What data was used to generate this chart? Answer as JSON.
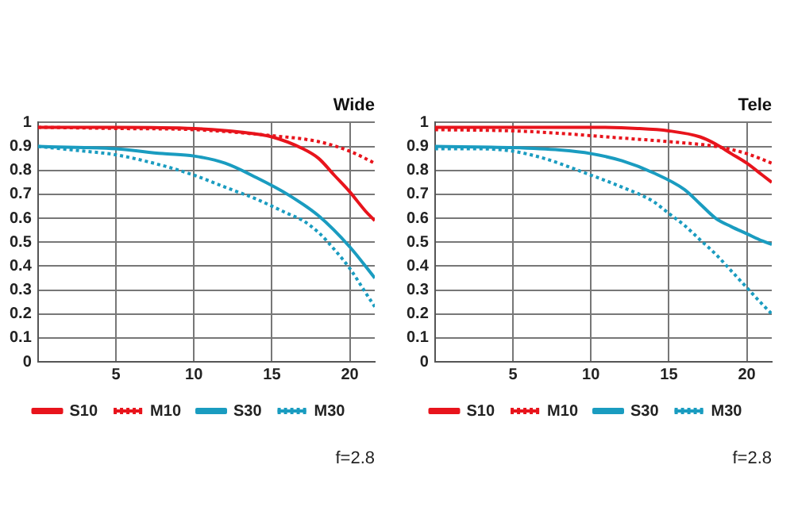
{
  "chart_data": [
    {
      "type": "line",
      "title": "Wide",
      "xlim": [
        0,
        21.6
      ],
      "xticks": [
        5,
        10,
        15,
        20
      ],
      "ylim": [
        0,
        1
      ],
      "yticks": [
        0,
        0.1,
        0.2,
        0.3,
        0.4,
        0.5,
        0.6,
        0.7,
        0.8,
        0.9,
        1
      ],
      "grid": true,
      "legend": "bottom",
      "marker": "none",
      "annotations": [
        "f=2.8"
      ],
      "series": [
        {
          "name": "S10",
          "color": "#e8141c",
          "line_style": "solid",
          "x": [
            0,
            5,
            10,
            13,
            15,
            17,
            18,
            19,
            20,
            21,
            21.6
          ],
          "values": [
            0.98,
            0.98,
            0.975,
            0.96,
            0.94,
            0.89,
            0.85,
            0.78,
            0.71,
            0.63,
            0.59
          ]
        },
        {
          "name": "M10",
          "color": "#e8141c",
          "line_style": "dotted",
          "x": [
            0,
            5,
            10,
            15,
            18,
            20,
            21.6
          ],
          "values": [
            0.98,
            0.975,
            0.97,
            0.945,
            0.92,
            0.88,
            0.83
          ]
        },
        {
          "name": "S30",
          "color": "#1a9cc0",
          "line_style": "solid",
          "x": [
            0,
            3,
            5,
            8,
            10,
            12,
            14,
            16,
            18,
            20,
            21.6
          ],
          "values": [
            0.9,
            0.895,
            0.89,
            0.87,
            0.86,
            0.83,
            0.77,
            0.7,
            0.61,
            0.48,
            0.35
          ]
        },
        {
          "name": "M30",
          "color": "#1a9cc0",
          "line_style": "dotted",
          "x": [
            0,
            3,
            5,
            8,
            10,
            12,
            14,
            16,
            17,
            18,
            19,
            20,
            21,
            21.6
          ],
          "values": [
            0.9,
            0.88,
            0.865,
            0.82,
            0.78,
            0.73,
            0.68,
            0.62,
            0.59,
            0.54,
            0.47,
            0.39,
            0.29,
            0.23
          ]
        }
      ]
    },
    {
      "type": "line",
      "title": "Tele",
      "xlim": [
        0,
        21.6
      ],
      "xticks": [
        5,
        10,
        15,
        20
      ],
      "ylim": [
        0,
        1
      ],
      "yticks": [
        0,
        0.1,
        0.2,
        0.3,
        0.4,
        0.5,
        0.6,
        0.7,
        0.8,
        0.9,
        1
      ],
      "grid": true,
      "legend": "bottom",
      "marker": "none",
      "annotations": [
        "f=2.8"
      ],
      "series": [
        {
          "name": "S10",
          "color": "#e8141c",
          "line_style": "solid",
          "x": [
            0,
            5,
            10,
            13,
            15,
            17,
            18,
            19,
            20,
            21,
            21.6
          ],
          "values": [
            0.98,
            0.98,
            0.98,
            0.975,
            0.965,
            0.94,
            0.91,
            0.87,
            0.83,
            0.78,
            0.75
          ]
        },
        {
          "name": "M10",
          "color": "#e8141c",
          "line_style": "dotted",
          "x": [
            0,
            5,
            8,
            10,
            12,
            15,
            18,
            20,
            21.6
          ],
          "values": [
            0.97,
            0.965,
            0.955,
            0.945,
            0.935,
            0.92,
            0.9,
            0.87,
            0.83
          ]
        },
        {
          "name": "S30",
          "color": "#1a9cc0",
          "line_style": "solid",
          "x": [
            0,
            5,
            8,
            10,
            12,
            14,
            16,
            17,
            18,
            19,
            20,
            21,
            21.6
          ],
          "values": [
            0.9,
            0.895,
            0.885,
            0.87,
            0.84,
            0.79,
            0.72,
            0.66,
            0.6,
            0.565,
            0.535,
            0.505,
            0.49
          ]
        },
        {
          "name": "M30",
          "color": "#1a9cc0",
          "line_style": "dotted",
          "x": [
            0,
            3,
            5,
            7,
            10,
            12,
            14,
            15,
            16,
            17,
            18,
            19,
            20,
            21,
            21.6
          ],
          "values": [
            0.89,
            0.89,
            0.88,
            0.85,
            0.78,
            0.73,
            0.67,
            0.62,
            0.57,
            0.51,
            0.45,
            0.38,
            0.31,
            0.24,
            0.2
          ]
        }
      ]
    }
  ]
}
